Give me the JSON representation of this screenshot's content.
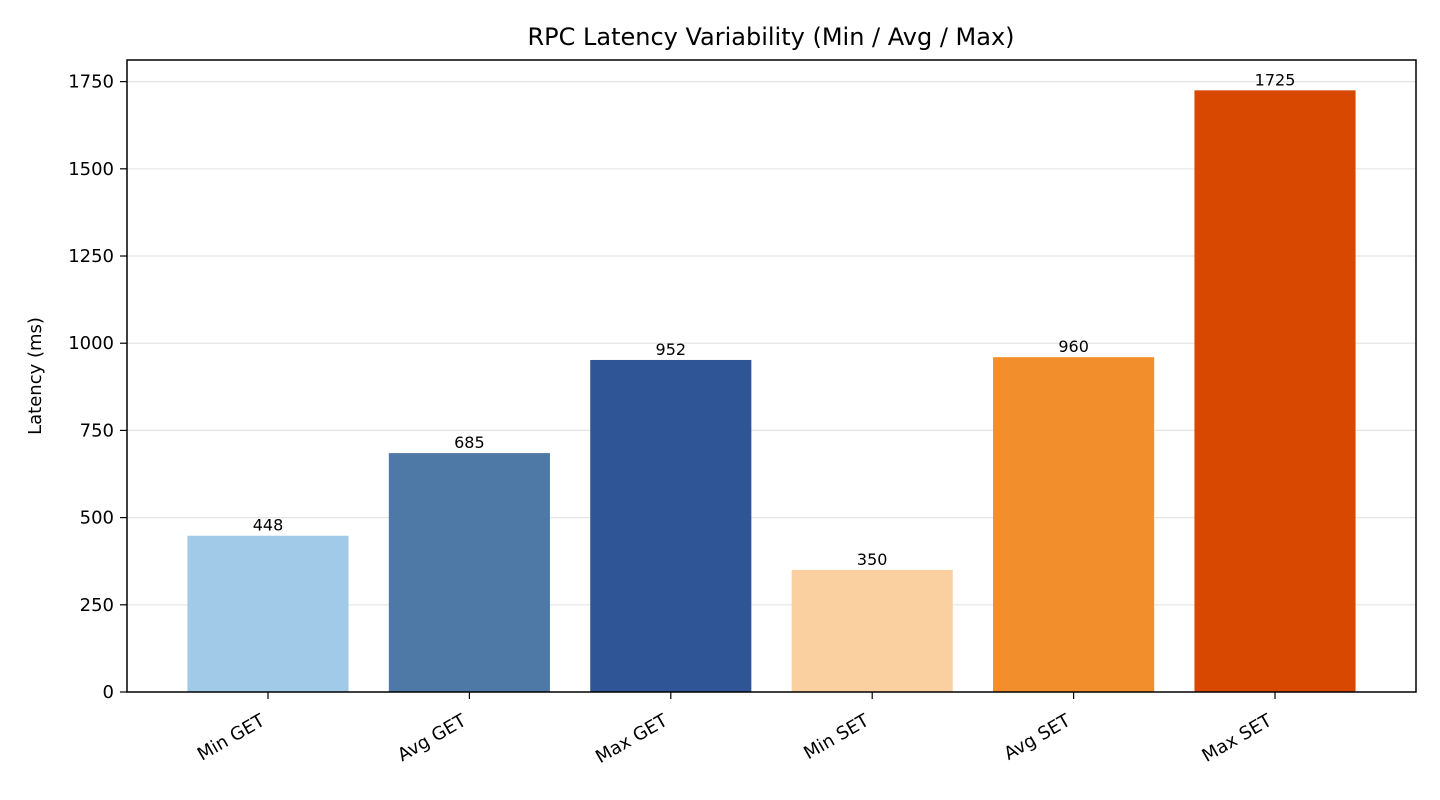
{
  "chart_data": {
    "type": "bar",
    "title": "RPC Latency Variability (Min / Avg / Max)",
    "xlabel": "",
    "ylabel": "Latency (ms)",
    "categories": [
      "Min GET",
      "Avg GET",
      "Max GET",
      "Min SET",
      "Avg SET",
      "Max SET"
    ],
    "values": [
      448,
      685,
      952,
      350,
      960,
      1725
    ],
    "data_labels": [
      "448",
      "685",
      "952",
      "350",
      "960",
      "1725"
    ],
    "colors": [
      "#a0cae8",
      "#4e79a7",
      "#2f5597",
      "#fbd0a1",
      "#f28e2b",
      "#d94801"
    ],
    "ylim": [
      0,
      1812
    ],
    "yticks": [
      0,
      250,
      500,
      750,
      1000,
      1250,
      1500,
      1750
    ],
    "ytick_labels": [
      "0",
      "250",
      "500",
      "750",
      "1000",
      "1250",
      "1500",
      "1750"
    ],
    "grid": "y",
    "legend": "none",
    "x_tick_rotation": "30 degrees"
  }
}
